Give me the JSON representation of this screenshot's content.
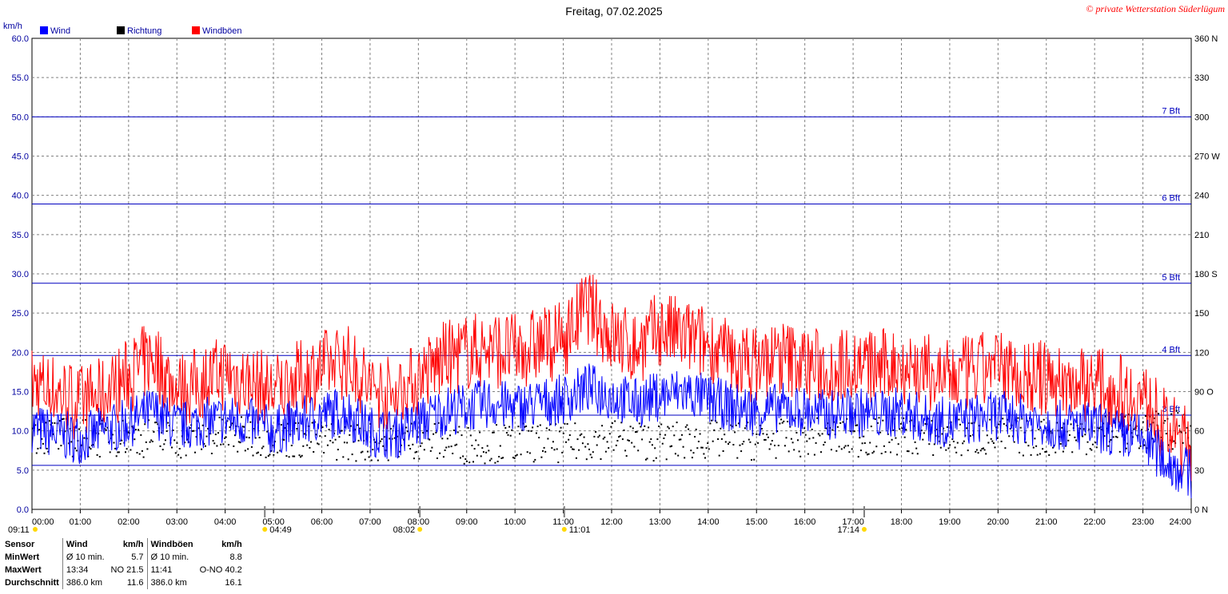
{
  "colors": {
    "wind": "#0000ff",
    "direction": "#000000",
    "gust": "#ff0000",
    "axis_text": "#0000a0",
    "grid": "#808080",
    "beaufort": "#0000c0",
    "marker": "#ffd800"
  },
  "header": {
    "title": "Freitag, 07.02.2025",
    "copyright": "© private Wetterstation Süderlügum"
  },
  "chart_data": {
    "type": "line",
    "title": "Freitag, 07.02.2025",
    "ylabel": "km/h",
    "ylim": [
      0,
      60
    ],
    "y2lim": [
      0,
      360
    ],
    "grid": true,
    "legend_position": "top-left",
    "legend": [
      {
        "name": "Wind",
        "color": "#0000ff"
      },
      {
        "name": "Richtung",
        "color": "#000000"
      },
      {
        "name": "Windböen",
        "color": "#ff0000"
      }
    ],
    "y_ticks": [
      "0.0",
      "5.0",
      "10.0",
      "15.0",
      "20.0",
      "25.0",
      "30.0",
      "35.0",
      "40.0",
      "45.0",
      "50.0",
      "55.0",
      "60.0"
    ],
    "y2_ticks": [
      "0",
      "30",
      "60",
      "90",
      "120",
      "150",
      "180",
      "210",
      "240",
      "270",
      "300",
      "330",
      "360"
    ],
    "y2_tick_suffix": {
      "0": "N",
      "90": "O",
      "180": "S",
      "270": "W",
      "360": "N"
    },
    "x_ticks": [
      "00:00",
      "01:00",
      "02:00",
      "03:00",
      "04:00",
      "05:00",
      "06:00",
      "07:00",
      "08:00",
      "09:00",
      "10:00",
      "11:00",
      "12:00",
      "13:00",
      "14:00",
      "15:00",
      "16:00",
      "17:00",
      "18:00",
      "19:00",
      "20:00",
      "21:00",
      "22:00",
      "23:00",
      "24:00"
    ],
    "beaufort_lines": [
      {
        "label": "3 Bft",
        "value": 12.0
      },
      {
        "label": "4 Bft",
        "value": 19.6
      },
      {
        "label": "5 Bft",
        "value": 28.8
      },
      {
        "label": "6 Bft",
        "value": 38.9
      },
      {
        "label": "7 Bft",
        "value": 50.0
      }
    ],
    "extra_line": 5.6,
    "sun_moon_markers": [
      {
        "time": "09:11",
        "hour": 0.0,
        "type": "moon"
      },
      {
        "time": "04:49",
        "hour": 4.82,
        "type": "moonset"
      },
      {
        "time": "08:02",
        "hour": 8.03,
        "type": "sunrise"
      },
      {
        "time": "11:01",
        "hour": 11.02,
        "type": "noon"
      },
      {
        "time": "17:14",
        "hour": 17.23,
        "type": "sunset"
      }
    ],
    "series": [
      {
        "name": "Wind",
        "x": [
          0,
          0.5,
          1,
          1.5,
          2,
          2.5,
          3,
          3.5,
          4,
          4.5,
          5,
          5.5,
          6,
          6.5,
          7,
          7.5,
          8,
          8.5,
          9,
          9.5,
          10,
          10.5,
          11,
          11.5,
          12,
          12.5,
          13,
          13.5,
          14,
          14.5,
          15,
          15.5,
          16,
          16.5,
          17,
          17.5,
          18,
          18.5,
          19,
          19.5,
          20,
          20.5,
          21,
          21.5,
          22,
          22.5,
          23,
          23.5,
          24
        ],
        "values": [
          10.5,
          9.5,
          9.0,
          10.0,
          11.0,
          12.5,
          10.5,
          11.0,
          11.5,
          11.0,
          10.0,
          11.0,
          12.0,
          12.5,
          10.0,
          9.5,
          11.0,
          12.5,
          13.0,
          13.5,
          13.0,
          13.5,
          14.0,
          15.5,
          14.5,
          13.5,
          14.5,
          15.0,
          14.0,
          13.0,
          12.5,
          13.0,
          12.5,
          12.0,
          12.5,
          12.0,
          12.5,
          11.5,
          11.0,
          11.5,
          12.0,
          11.5,
          11.0,
          10.5,
          10.5,
          9.5,
          9.0,
          6.0,
          4.5
        ]
      },
      {
        "name": "Windböen",
        "x": [
          0,
          0.5,
          1,
          1.5,
          2,
          2.5,
          3,
          3.5,
          4,
          4.5,
          5,
          5.5,
          6,
          6.5,
          7,
          7.5,
          8,
          8.5,
          9,
          9.5,
          10,
          10.5,
          11,
          11.5,
          12,
          12.5,
          13,
          13.5,
          14,
          14.5,
          15,
          15.5,
          16,
          16.5,
          17,
          17.5,
          18,
          18.5,
          19,
          19.5,
          20,
          20.5,
          21,
          21.5,
          22,
          22.5,
          23,
          23.5,
          24
        ],
        "values": [
          16.0,
          15.0,
          13.5,
          14.5,
          17.0,
          19.5,
          15.0,
          16.0,
          17.5,
          16.0,
          15.0,
          16.5,
          18.0,
          19.0,
          15.5,
          14.5,
          16.5,
          19.0,
          20.0,
          20.5,
          20.0,
          21.0,
          21.5,
          26.0,
          22.0,
          20.5,
          23.0,
          22.0,
          21.0,
          19.0,
          18.5,
          19.5,
          18.5,
          18.0,
          18.5,
          18.0,
          18.5,
          17.5,
          16.5,
          17.5,
          18.0,
          17.0,
          16.5,
          16.0,
          16.0,
          15.0,
          14.0,
          10.0,
          8.0
        ]
      },
      {
        "name": "Richtung",
        "x": [
          0,
          1,
          2,
          3,
          4,
          5,
          6,
          7,
          8,
          9,
          10,
          11,
          12,
          13,
          14,
          15,
          16,
          17,
          18,
          19,
          20,
          21,
          22,
          23,
          24
        ],
        "values": [
          58,
          55,
          56,
          54,
          57,
          55,
          53,
          52,
          54,
          50,
          52,
          51,
          55,
          52,
          54,
          53,
          56,
          55,
          57,
          55,
          56,
          56,
          58,
          60,
          62
        ]
      }
    ]
  },
  "stats": {
    "headers": [
      "Sensor",
      "Wind",
      "km/h",
      "Windböen",
      "km/h"
    ],
    "rows": [
      [
        "MinWert",
        "Ø 10 min.",
        "5.7",
        "Ø 10 min.",
        "8.8"
      ],
      [
        "MaxWert",
        "13:34",
        "NO 21.5",
        "11:41",
        "O-NO 40.2"
      ],
      [
        "Durchschnitt",
        "386.0 km",
        "11.6",
        "386.0 km",
        "16.1"
      ]
    ]
  }
}
